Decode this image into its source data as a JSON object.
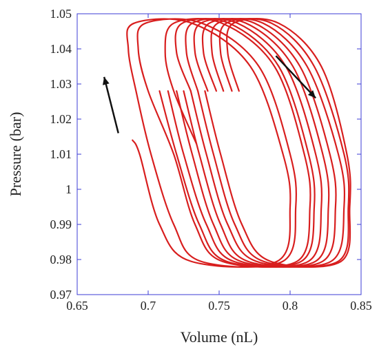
{
  "chart_data": {
    "type": "line",
    "title": "",
    "xlabel": "Volume (nL)",
    "ylabel": "Pressure (bar)",
    "xlim": [
      0.65,
      0.85
    ],
    "ylim": [
      0.97,
      1.05
    ],
    "x_ticks": [
      0.65,
      0.7,
      0.75,
      0.8,
      0.85
    ],
    "x_tick_labels": [
      "0.65",
      "0.7",
      "0.75",
      "0.8",
      "0.85"
    ],
    "y_ticks": [
      0.97,
      0.98,
      0.99,
      1.0,
      1.01,
      1.02,
      1.03,
      1.04,
      1.05
    ],
    "y_tick_labels": [
      "0.97",
      "0.98",
      "0.99",
      "1",
      "1.01",
      "1.02",
      "1.03",
      "1.04",
      "1.05"
    ],
    "grid": false,
    "line_color": "#d81e1e",
    "frame_color": "#3b3bd6",
    "arrow_color": "#111111",
    "series": [
      {
        "points": [
          [
            0.734,
            1.013
          ],
          [
            0.718,
            1.028
          ],
          [
            0.712,
            1.039
          ],
          [
            0.718,
            1.0473
          ],
          [
            0.752,
            1.0473
          ],
          [
            0.789,
            1.035
          ],
          [
            0.81,
            1.01
          ],
          [
            0.814,
            0.995
          ],
          [
            0.805,
            0.9795
          ],
          [
            0.752,
            0.9795
          ],
          [
            0.733,
            0.99
          ],
          [
            0.718,
            1.01
          ],
          [
            0.7,
            1.028
          ],
          [
            0.693,
            1.04
          ],
          [
            0.698,
            1.0473
          ],
          [
            0.738,
            1.0473
          ],
          [
            0.778,
            1.035
          ],
          [
            0.8,
            1.01
          ],
          [
            0.804,
            0.995
          ],
          [
            0.795,
            0.9795
          ],
          [
            0.737,
            0.9795
          ],
          [
            0.718,
            0.99
          ],
          [
            0.702,
            1.01
          ],
          [
            0.692,
            1.027
          ],
          [
            0.686,
            1.04
          ],
          [
            0.69,
            1.0473
          ],
          [
            0.731,
            1.0473
          ],
          [
            0.772,
            1.035
          ],
          [
            0.795,
            1.01
          ],
          [
            0.8,
            0.995
          ],
          [
            0.791,
            0.9795
          ],
          [
            0.73,
            0.9795
          ],
          [
            0.708,
            0.99
          ],
          [
            0.694,
            1.01
          ],
          [
            0.689,
            1.014
          ]
        ]
      },
      {
        "points": [
          [
            0.73,
            1.028
          ],
          [
            0.72,
            1.039
          ],
          [
            0.724,
            1.0473
          ],
          [
            0.757,
            1.0473
          ],
          [
            0.792,
            1.035
          ],
          [
            0.813,
            1.01
          ],
          [
            0.817,
            0.995
          ],
          [
            0.808,
            0.9795
          ],
          [
            0.755,
            0.9795
          ],
          [
            0.736,
            0.99
          ],
          [
            0.72,
            1.01
          ],
          [
            0.708,
            1.028
          ]
        ]
      },
      {
        "points": [
          [
            0.735,
            1.028
          ],
          [
            0.727,
            1.039
          ],
          [
            0.731,
            1.0473
          ],
          [
            0.763,
            1.0473
          ],
          [
            0.797,
            1.035
          ],
          [
            0.818,
            1.01
          ],
          [
            0.822,
            0.995
          ],
          [
            0.813,
            0.9795
          ],
          [
            0.76,
            0.9795
          ],
          [
            0.741,
            0.99
          ],
          [
            0.725,
            1.01
          ],
          [
            0.714,
            1.028
          ]
        ]
      },
      {
        "points": [
          [
            0.742,
            1.028
          ],
          [
            0.733,
            1.039
          ],
          [
            0.737,
            1.0473
          ],
          [
            0.769,
            1.0473
          ],
          [
            0.802,
            1.035
          ],
          [
            0.823,
            1.01
          ],
          [
            0.827,
            0.995
          ],
          [
            0.818,
            0.9795
          ],
          [
            0.765,
            0.9795
          ],
          [
            0.746,
            0.99
          ],
          [
            0.731,
            1.01
          ],
          [
            0.72,
            1.028
          ]
        ]
      },
      {
        "points": [
          [
            0.748,
            1.028
          ],
          [
            0.739,
            1.039
          ],
          [
            0.743,
            1.0473
          ],
          [
            0.775,
            1.0473
          ],
          [
            0.807,
            1.035
          ],
          [
            0.828,
            1.01
          ],
          [
            0.832,
            0.995
          ],
          [
            0.823,
            0.9795
          ],
          [
            0.77,
            0.9795
          ],
          [
            0.751,
            0.99
          ],
          [
            0.736,
            1.01
          ],
          [
            0.725,
            1.028
          ]
        ]
      },
      {
        "points": [
          [
            0.753,
            1.028
          ],
          [
            0.745,
            1.039
          ],
          [
            0.749,
            1.0473
          ],
          [
            0.781,
            1.0473
          ],
          [
            0.812,
            1.035
          ],
          [
            0.834,
            1.01
          ],
          [
            0.838,
            0.995
          ],
          [
            0.829,
            0.9795
          ],
          [
            0.776,
            0.9795
          ],
          [
            0.756,
            0.99
          ],
          [
            0.741,
            1.01
          ],
          [
            0.73,
            1.028
          ]
        ]
      },
      {
        "points": [
          [
            0.759,
            1.028
          ],
          [
            0.751,
            1.039
          ],
          [
            0.755,
            1.0473
          ],
          [
            0.787,
            1.0473
          ],
          [
            0.817,
            1.035
          ],
          [
            0.838,
            1.01
          ],
          [
            0.841,
            0.995
          ],
          [
            0.834,
            0.9795
          ],
          [
            0.781,
            0.9795
          ],
          [
            0.761,
            0.99
          ],
          [
            0.746,
            1.01
          ],
          [
            0.735,
            1.028
          ]
        ]
      },
      {
        "points": [
          [
            0.764,
            1.028
          ],
          [
            0.756,
            1.039
          ],
          [
            0.76,
            1.0473
          ],
          [
            0.792,
            1.0473
          ],
          [
            0.822,
            1.035
          ],
          [
            0.84,
            1.01
          ],
          [
            0.842,
            0.995
          ],
          [
            0.836,
            0.9795
          ],
          [
            0.786,
            0.9795
          ],
          [
            0.766,
            0.99
          ],
          [
            0.751,
            1.01
          ],
          [
            0.74,
            1.028
          ]
        ]
      }
    ],
    "arrows": [
      {
        "from": [
          0.679,
          1.016
        ],
        "to": [
          0.669,
          1.032
        ]
      },
      {
        "from": [
          0.79,
          1.038
        ],
        "to": [
          0.818,
          1.026
        ]
      }
    ]
  }
}
